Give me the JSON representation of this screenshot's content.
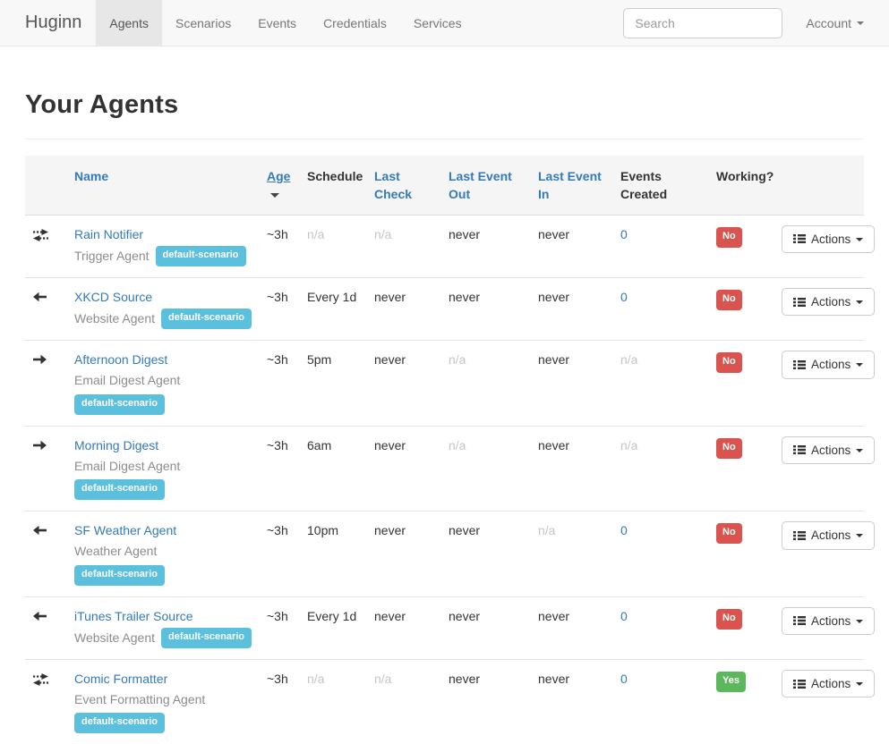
{
  "navbar": {
    "brand": "Huginn",
    "items": [
      {
        "label": "Agents",
        "active": true
      },
      {
        "label": "Scenarios",
        "active": false
      },
      {
        "label": "Events",
        "active": false
      },
      {
        "label": "Credentials",
        "active": false
      },
      {
        "label": "Services",
        "active": false
      }
    ],
    "search_placeholder": "Search",
    "account_label": "Account"
  },
  "page_title": "Your Agents",
  "table": {
    "headers": {
      "name": {
        "label": "Name",
        "sortable": true
      },
      "age": {
        "label": "Age",
        "sortable": true,
        "sorted": "desc"
      },
      "schedule": {
        "label": "Schedule",
        "sortable": false
      },
      "last_check": {
        "label": "Last Check",
        "sortable": true
      },
      "last_event_out": {
        "label": "Last Event Out",
        "sortable": true
      },
      "last_event_in": {
        "label": "Last Event In",
        "sortable": true
      },
      "events_created": {
        "label": "Events Created",
        "sortable": false
      },
      "working": {
        "label": "Working?",
        "sortable": false
      }
    },
    "actions_label": "Actions"
  },
  "agents": [
    {
      "name": "Rain Notifier",
      "icon": "transfer-icon",
      "type": "Trigger Agent",
      "scenario": "default-scenario",
      "age": "~3h",
      "schedule": {
        "text": "n/a",
        "muted": true
      },
      "last_check": {
        "text": "n/a",
        "muted": true
      },
      "last_event_out": {
        "text": "never"
      },
      "last_event_in": {
        "text": "never"
      },
      "events_created": {
        "text": "0",
        "link": true
      },
      "working": {
        "text": "No",
        "ok": false
      }
    },
    {
      "name": "XKCD Source",
      "icon": "arrow-left-icon",
      "type": "Website Agent",
      "scenario": "default-scenario",
      "age": "~3h",
      "schedule": {
        "text": "Every 1d"
      },
      "last_check": {
        "text": "never"
      },
      "last_event_out": {
        "text": "never"
      },
      "last_event_in": {
        "text": "never"
      },
      "events_created": {
        "text": "0",
        "link": true
      },
      "working": {
        "text": "No",
        "ok": false
      }
    },
    {
      "name": "Afternoon Digest",
      "icon": "arrow-right-icon",
      "type": "Email Digest Agent",
      "scenario": "default-scenario",
      "age": "~3h",
      "schedule": {
        "text": "5pm"
      },
      "last_check": {
        "text": "never"
      },
      "last_event_out": {
        "text": "n/a",
        "muted": true
      },
      "last_event_in": {
        "text": "never"
      },
      "events_created": {
        "text": "n/a",
        "muted": true
      },
      "working": {
        "text": "No",
        "ok": false
      }
    },
    {
      "name": "Morning Digest",
      "icon": "arrow-right-icon",
      "type": "Email Digest Agent",
      "scenario": "default-scenario",
      "age": "~3h",
      "schedule": {
        "text": "6am"
      },
      "last_check": {
        "text": "never"
      },
      "last_event_out": {
        "text": "n/a",
        "muted": true
      },
      "last_event_in": {
        "text": "never"
      },
      "events_created": {
        "text": "n/a",
        "muted": true
      },
      "working": {
        "text": "No",
        "ok": false
      }
    },
    {
      "name": "SF Weather Agent",
      "icon": "arrow-left-icon",
      "type": "Weather Agent",
      "scenario": "default-scenario",
      "age": "~3h",
      "schedule": {
        "text": "10pm"
      },
      "last_check": {
        "text": "never"
      },
      "last_event_out": {
        "text": "never"
      },
      "last_event_in": {
        "text": "n/a",
        "muted": true
      },
      "events_created": {
        "text": "0",
        "link": true
      },
      "working": {
        "text": "No",
        "ok": false
      }
    },
    {
      "name": "iTunes Trailer Source",
      "icon": "arrow-left-icon",
      "type": "Website Agent",
      "scenario": "default-scenario",
      "age": "~3h",
      "schedule": {
        "text": "Every 1d"
      },
      "last_check": {
        "text": "never"
      },
      "last_event_out": {
        "text": "never"
      },
      "last_event_in": {
        "text": "never"
      },
      "events_created": {
        "text": "0",
        "link": true
      },
      "working": {
        "text": "No",
        "ok": false
      }
    },
    {
      "name": "Comic Formatter",
      "icon": "transfer-icon",
      "type": "Event Formatting Agent",
      "scenario": "default-scenario",
      "age": "~3h",
      "schedule": {
        "text": "n/a",
        "muted": true
      },
      "last_check": {
        "text": "n/a",
        "muted": true
      },
      "last_event_out": {
        "text": "never"
      },
      "last_event_in": {
        "text": "never"
      },
      "events_created": {
        "text": "0",
        "link": true
      },
      "working": {
        "text": "Yes",
        "ok": true
      }
    }
  ],
  "colors": {
    "link": "#337ab7",
    "scenario_badge": "#5bc0de",
    "working_no": "#d9534f",
    "working_yes": "#5cb85c",
    "navbar_bg": "#f8f8f8",
    "active_tab_bg": "#e7e7e7",
    "header_bg": "#f5f5f5"
  }
}
